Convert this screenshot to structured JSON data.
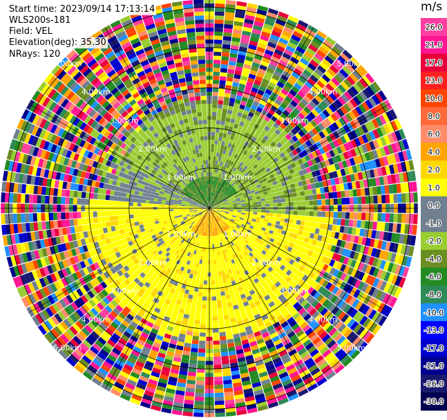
{
  "header": {
    "start_time": "Start time: 2023/09/14 17:13:14",
    "instrument": "WLS200s-181",
    "field": "Field: VEL",
    "elevation": "Elevation(deg): 35.30",
    "nrays": "NRays: 120"
  },
  "chart_data": {
    "type": "heatmap",
    "projection": "polar-ppi",
    "title": "",
    "xlabel": "",
    "ylabel": "",
    "range_rings_km": [
      1,
      2,
      3,
      4,
      5
    ],
    "ring_labels": [
      "1.00km",
      "2.00km",
      "3.00km",
      "4.00km",
      "5.00km"
    ],
    "nrays": 120,
    "colorbar": {
      "unit": "m/s",
      "ticks": [
        "26.0",
        "21.0",
        "17.0",
        "13.0",
        "10.0",
        "8.0",
        "6.0",
        "4.0",
        "2.0",
        "1.0",
        "0.0",
        "-1.0",
        "-2.0",
        "-4.0",
        "-6.0",
        "-8.0",
        "-10.0",
        "-13.0",
        "-17.0",
        "-21.0",
        "-26.0",
        "-30.0"
      ],
      "colors": [
        "#ff3fa0",
        "#ff1493",
        "#e8003a",
        "#ff2020",
        "#ff4500",
        "#ff6a3a",
        "#ff8c69",
        "#ffa500",
        "#ffd700",
        "#ffff00",
        "#708090",
        "#708090",
        "#9acd32",
        "#6b8e23",
        "#228b22",
        "#2e8b57",
        "#1e90ff",
        "#0000ff",
        "#0000cd",
        "#00008b",
        "#191970",
        "#000050"
      ]
    }
  }
}
